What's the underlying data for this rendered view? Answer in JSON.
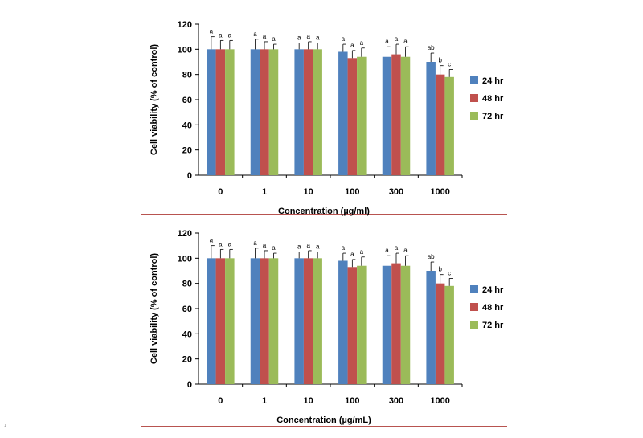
{
  "footnote": "1",
  "chart_data": [
    {
      "type": "bar",
      "categories": [
        "0",
        "1",
        "10",
        "100",
        "300",
        "1000"
      ],
      "xlabel": "Concentration (µg/ml)",
      "ylabel": "Cell viability (% of control)",
      "ylim": [
        0,
        120
      ],
      "yticks": [
        0,
        20,
        40,
        60,
        80,
        100,
        120
      ],
      "legend_position": "right",
      "grid": false,
      "series": [
        {
          "name": "24 hr",
          "color": "#4f81bd",
          "values": [
            100,
            100,
            100,
            98,
            94,
            90
          ],
          "errors": [
            10,
            8,
            5,
            6,
            8,
            7
          ],
          "letters": [
            "a",
            "a",
            "a",
            "a",
            "a",
            "ab"
          ]
        },
        {
          "name": "48 hr",
          "color": "#c0504d",
          "values": [
            100,
            100,
            100,
            93,
            96,
            80
          ],
          "errors": [
            7,
            6,
            6,
            6,
            8,
            7
          ],
          "letters": [
            "a",
            "a",
            "a",
            "a",
            "a",
            "b"
          ]
        },
        {
          "name": "72 hr",
          "color": "#9bbb59",
          "values": [
            100,
            100,
            100,
            94,
            94,
            78
          ],
          "errors": [
            7,
            4,
            5,
            7,
            8,
            6
          ],
          "letters": [
            "a",
            "a",
            "a",
            "a",
            "a",
            "c"
          ]
        }
      ]
    },
    {
      "type": "bar",
      "categories": [
        "0",
        "1",
        "10",
        "100",
        "300",
        "1000"
      ],
      "xlabel": "Concentration  (µg/mL)",
      "ylabel": "Cell viability (% of control)",
      "ylim": [
        0,
        120
      ],
      "yticks": [
        0,
        20,
        40,
        60,
        80,
        100,
        120
      ],
      "legend_position": "right",
      "grid": false,
      "series": [
        {
          "name": "24 hr",
          "color": "#4f81bd",
          "values": [
            100,
            100,
            100,
            98,
            94,
            90
          ],
          "errors": [
            10,
            8,
            5,
            6,
            8,
            7
          ],
          "letters": [
            "a",
            "a",
            "a",
            "a",
            "a",
            "ab"
          ]
        },
        {
          "name": "48 hr",
          "color": "#c0504d",
          "values": [
            100,
            100,
            100,
            93,
            96,
            80
          ],
          "errors": [
            7,
            6,
            6,
            6,
            8,
            7
          ],
          "letters": [
            "a",
            "a",
            "a",
            "a",
            "a",
            "b"
          ]
        },
        {
          "name": "72 hr",
          "color": "#9bbb59",
          "values": [
            100,
            100,
            100,
            94,
            94,
            78
          ],
          "errors": [
            7,
            4,
            5,
            7,
            8,
            6
          ],
          "letters": [
            "a",
            "a",
            "a",
            "a",
            "a",
            "c"
          ]
        }
      ]
    }
  ]
}
